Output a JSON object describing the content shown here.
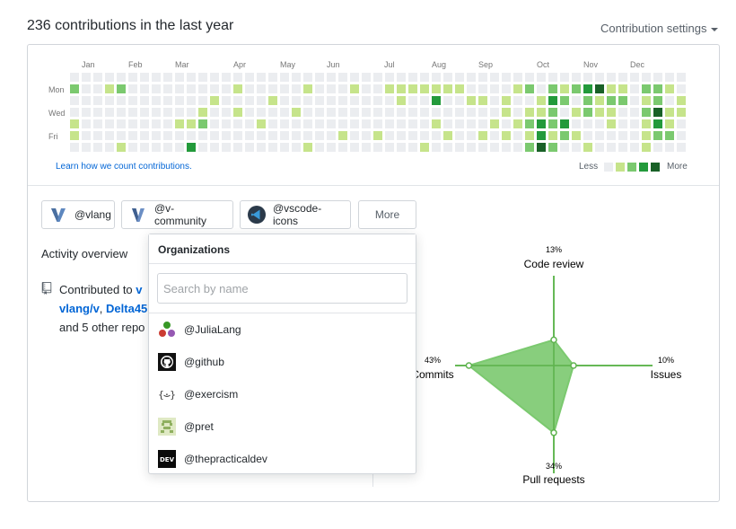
{
  "summary": {
    "title": "236 contributions in the last year",
    "settings_label": "Contribution settings"
  },
  "calendar": {
    "months": [
      "Jan",
      "Feb",
      "Mar",
      "Apr",
      "May",
      "Jun",
      "Jul",
      "Aug",
      "Sep",
      "Oct",
      "Nov",
      "Dec"
    ],
    "days": [
      "Mon",
      "Wed",
      "Fri"
    ],
    "learn_link": "Learn how we count contributions.",
    "legend_less": "Less",
    "legend_more": "More",
    "colors": [
      "#ebedf0",
      "#c6e48b",
      "#7bc96f",
      "#239a3b",
      "#196127"
    ],
    "weeks": 53,
    "active_cells": [
      [
        0,
        1,
        2
      ],
      [
        0,
        4,
        1
      ],
      [
        0,
        5,
        1
      ],
      [
        3,
        1,
        1
      ],
      [
        4,
        1,
        2
      ],
      [
        4,
        6,
        1
      ],
      [
        9,
        4,
        1
      ],
      [
        10,
        4,
        1
      ],
      [
        10,
        6,
        3
      ],
      [
        11,
        3,
        1
      ],
      [
        11,
        4,
        2
      ],
      [
        12,
        2,
        1
      ],
      [
        14,
        1,
        1
      ],
      [
        14,
        3,
        1
      ],
      [
        16,
        4,
        1
      ],
      [
        17,
        2,
        1
      ],
      [
        19,
        3,
        1
      ],
      [
        20,
        1,
        1
      ],
      [
        20,
        6,
        1
      ],
      [
        23,
        5,
        1
      ],
      [
        24,
        1,
        1
      ],
      [
        26,
        5,
        1
      ],
      [
        27,
        1,
        1
      ],
      [
        28,
        1,
        1
      ],
      [
        28,
        2,
        1
      ],
      [
        29,
        1,
        1
      ],
      [
        30,
        1,
        1
      ],
      [
        30,
        6,
        1
      ],
      [
        31,
        1,
        1
      ],
      [
        31,
        2,
        3
      ],
      [
        31,
        4,
        1
      ],
      [
        32,
        1,
        1
      ],
      [
        32,
        5,
        1
      ],
      [
        33,
        1,
        1
      ],
      [
        34,
        2,
        1
      ],
      [
        35,
        2,
        1
      ],
      [
        35,
        5,
        1
      ],
      [
        36,
        4,
        1
      ],
      [
        37,
        2,
        1
      ],
      [
        37,
        3,
        1
      ],
      [
        37,
        5,
        1
      ],
      [
        38,
        1,
        1
      ],
      [
        38,
        4,
        1
      ],
      [
        39,
        1,
        2
      ],
      [
        39,
        3,
        1
      ],
      [
        39,
        4,
        2
      ],
      [
        39,
        5,
        1
      ],
      [
        39,
        6,
        2
      ],
      [
        40,
        2,
        1
      ],
      [
        40,
        3,
        1
      ],
      [
        40,
        4,
        3
      ],
      [
        40,
        5,
        3
      ],
      [
        40,
        6,
        4
      ],
      [
        41,
        1,
        2
      ],
      [
        41,
        2,
        3
      ],
      [
        41,
        3,
        2
      ],
      [
        41,
        4,
        2
      ],
      [
        41,
        5,
        1
      ],
      [
        41,
        6,
        2
      ],
      [
        42,
        1,
        1
      ],
      [
        42,
        2,
        2
      ],
      [
        42,
        4,
        3
      ],
      [
        42,
        5,
        2
      ],
      [
        43,
        1,
        2
      ],
      [
        43,
        3,
        1
      ],
      [
        43,
        5,
        1
      ],
      [
        44,
        1,
        3
      ],
      [
        44,
        2,
        2
      ],
      [
        44,
        3,
        2
      ],
      [
        44,
        6,
        1
      ],
      [
        45,
        1,
        4
      ],
      [
        45,
        2,
        1
      ],
      [
        45,
        3,
        1
      ],
      [
        46,
        1,
        1
      ],
      [
        46,
        2,
        2
      ],
      [
        46,
        3,
        1
      ],
      [
        46,
        4,
        1
      ],
      [
        47,
        1,
        1
      ],
      [
        47,
        2,
        2
      ],
      [
        49,
        1,
        2
      ],
      [
        49,
        2,
        1
      ],
      [
        49,
        3,
        2
      ],
      [
        49,
        4,
        1
      ],
      [
        49,
        5,
        1
      ],
      [
        49,
        6,
        1
      ],
      [
        50,
        1,
        2
      ],
      [
        50,
        2,
        2
      ],
      [
        50,
        3,
        4
      ],
      [
        50,
        4,
        3
      ],
      [
        50,
        5,
        2
      ],
      [
        51,
        1,
        1
      ],
      [
        51,
        3,
        1
      ],
      [
        51,
        4,
        1
      ],
      [
        51,
        5,
        2
      ],
      [
        52,
        2,
        1
      ],
      [
        52,
        3,
        1
      ]
    ]
  },
  "orgs": [
    {
      "label": "@vlang"
    },
    {
      "label": "@v-community"
    },
    {
      "label": "@vscode-icons"
    }
  ],
  "more_button": "More",
  "dropdown": {
    "title": "Organizations",
    "search_placeholder": "Search by name",
    "items": [
      {
        "label": "@JuliaLang",
        "icon": "julia-logo-icon"
      },
      {
        "label": "@github",
        "icon": "github-logo-icon"
      },
      {
        "label": "@exercism",
        "icon": "exercism-logo-icon"
      },
      {
        "label": "@pret",
        "icon": "pret-logo-icon"
      },
      {
        "label": "@thepracticaldev",
        "icon": "dev-logo-icon",
        "text": "DEV"
      }
    ]
  },
  "activity": {
    "title": "Activity overview",
    "intro": "Contributed to ",
    "repo1": "v",
    "repo2": "vlang/v",
    "sep": ", ",
    "repo3": "Delta45",
    "outro": "and 5 other repo"
  },
  "radar": {
    "color": "#7bc96f",
    "axes": {
      "code_review": {
        "label": "Code review",
        "pct": "13%",
        "value": 13
      },
      "issues": {
        "label": "Issues",
        "pct": "10%",
        "value": 10
      },
      "pull_requests": {
        "label": "Pull requests",
        "pct": "34%",
        "value": 34
      },
      "commits": {
        "label": "Commits",
        "pct": "43%",
        "value": 43
      }
    }
  }
}
